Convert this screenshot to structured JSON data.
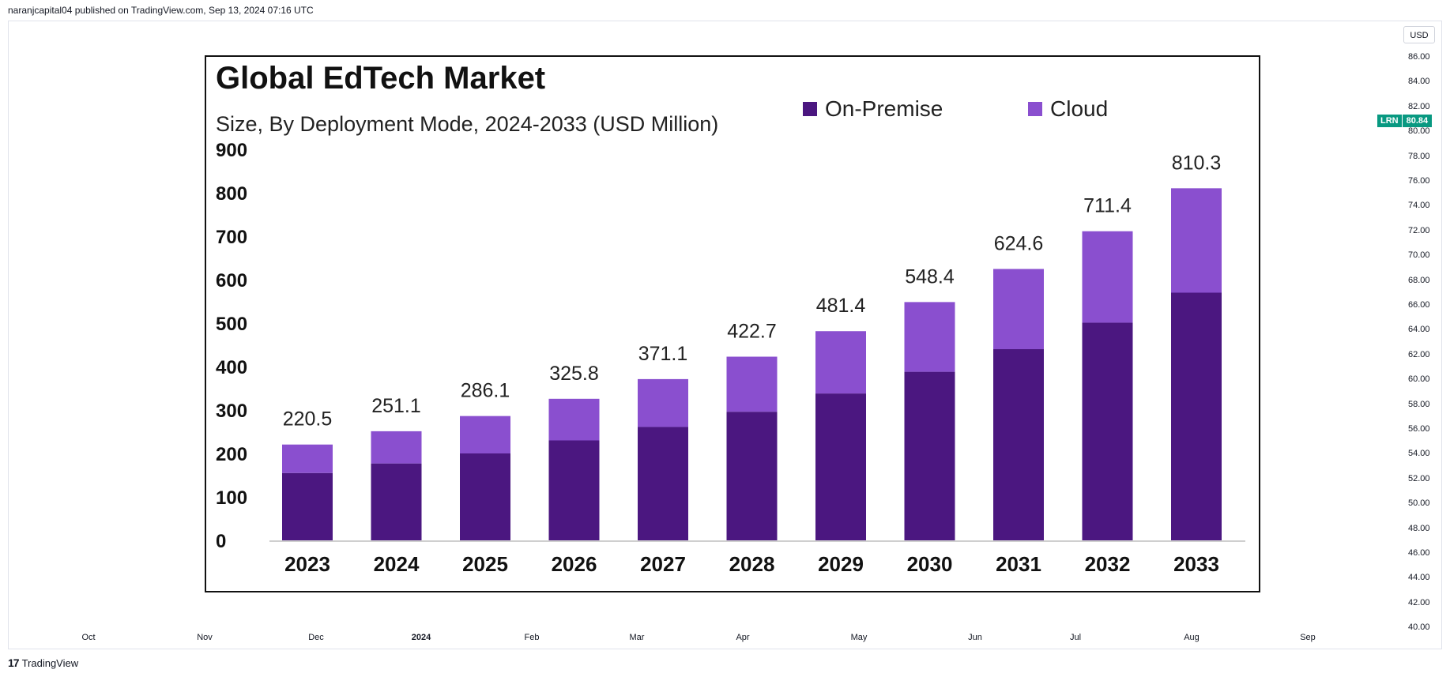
{
  "header": {
    "published": "naranjcapital04 published on TradingView.com, Sep 13, 2024 07:16 UTC"
  },
  "price_scale": {
    "currency": "USD",
    "ticks": [
      "86.00",
      "84.00",
      "82.00",
      "80.00",
      "78.00",
      "76.00",
      "74.00",
      "72.00",
      "70.00",
      "68.00",
      "66.00",
      "64.00",
      "62.00",
      "60.00",
      "58.00",
      "56.00",
      "54.00",
      "52.00",
      "50.00",
      "48.00",
      "46.00",
      "44.00",
      "42.00",
      "40.00"
    ],
    "symbol": "LRN",
    "last_price": "80.84"
  },
  "time_axis": [
    {
      "label": "Oct",
      "bold": false
    },
    {
      "label": "Nov",
      "bold": false
    },
    {
      "label": "Dec",
      "bold": false
    },
    {
      "label": "2024",
      "bold": true
    },
    {
      "label": "Feb",
      "bold": false
    },
    {
      "label": "Mar",
      "bold": false
    },
    {
      "label": "Apr",
      "bold": false
    },
    {
      "label": "May",
      "bold": false
    },
    {
      "label": "Jun",
      "bold": false
    },
    {
      "label": "Jul",
      "bold": false
    },
    {
      "label": "Aug",
      "bold": false
    },
    {
      "label": "Sep",
      "bold": false
    }
  ],
  "footer": {
    "brand": "TradingView",
    "logo": "17"
  },
  "colors": {
    "on_premise": "#4b1780",
    "cloud": "#8a4fcf",
    "tv_green": "#089981"
  },
  "chart_data": {
    "type": "bar",
    "stacked": true,
    "title": "Global EdTech Market",
    "subtitle": "Size, By Deployment Mode, 2024-2033 (USD Million)",
    "categories": [
      "2023",
      "2024",
      "2025",
      "2026",
      "2027",
      "2028",
      "2029",
      "2030",
      "2031",
      "2032",
      "2033"
    ],
    "series": [
      {
        "name": "On-Premise",
        "values": [
          155,
          177,
          200,
          230,
          261,
          296,
          338,
          388,
          440,
          501,
          570
        ]
      },
      {
        "name": "Cloud",
        "values": [
          65.5,
          74.1,
          86.1,
          95.8,
          110.1,
          126.7,
          143.4,
          160.4,
          184.6,
          210.4,
          240.3
        ]
      }
    ],
    "totals": [
      "220.5",
      "251.1",
      "286.1",
      "325.8",
      "371.1",
      "422.7",
      "481.4",
      "548.4",
      "624.6",
      "711.4",
      "810.3"
    ],
    "total_values": [
      220.5,
      251.1,
      286.1,
      325.8,
      371.1,
      422.7,
      481.4,
      548.4,
      624.6,
      711.4,
      810.3
    ],
    "yticks": [
      "900",
      "800",
      "700",
      "600",
      "500",
      "400",
      "300",
      "200",
      "100",
      "0"
    ],
    "ylim": [
      0,
      900
    ],
    "legend": "top-right"
  }
}
